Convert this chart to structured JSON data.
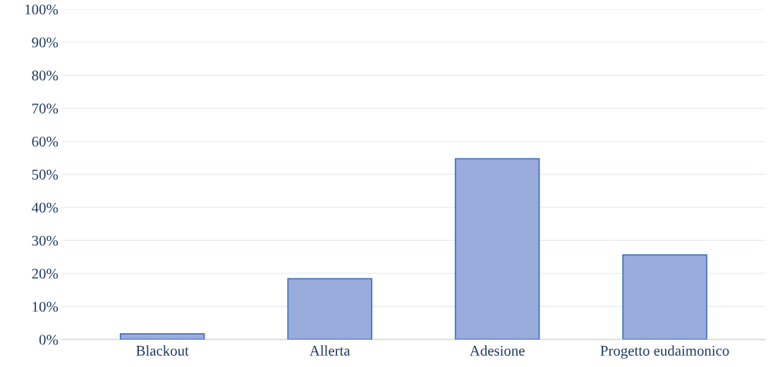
{
  "chart_data": {
    "type": "bar",
    "categories": [
      "Blackout",
      "Allerta",
      "Adesione",
      "Progetto eudaimonico"
    ],
    "values": [
      1.7,
      18.4,
      54.7,
      25.6
    ],
    "color": "#9aacdc",
    "ylim": [
      0,
      100
    ],
    "yticks": [
      {
        "value": 0,
        "label": "0%"
      },
      {
        "value": 10,
        "label": "10%"
      },
      {
        "value": 20,
        "label": "20%"
      },
      {
        "value": 30,
        "label": "30%"
      },
      {
        "value": 40,
        "label": "40%"
      },
      {
        "value": 50,
        "label": "50%"
      },
      {
        "value": 60,
        "label": "60%"
      },
      {
        "value": 70,
        "label": "70%"
      },
      {
        "value": 80,
        "label": "80%"
      },
      {
        "value": 90,
        "label": "90%"
      },
      {
        "value": 100,
        "label": "100%"
      }
    ],
    "grid": "y",
    "legend": false
  }
}
